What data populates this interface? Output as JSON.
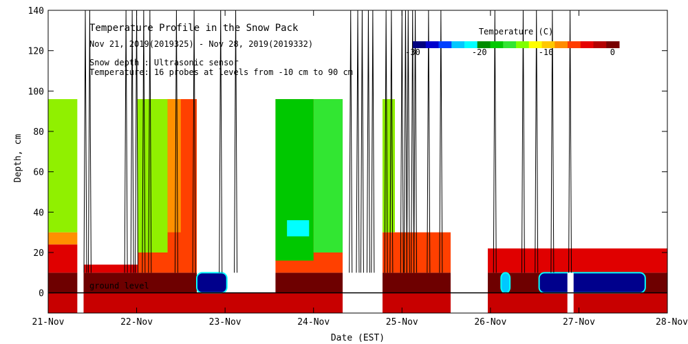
{
  "chart_data": {
    "type": "heatmap",
    "title": "Temperature Profile in the Snow Pack",
    "subtitle": "Nov 21, 2019(2019325) - Nov 28, 2019(2019332)",
    "notes": [
      "Snow depth : Ultrasonic sensor",
      "Temperature: 16 probes at levels from -10 cm to 90 cm"
    ],
    "xlabel": "Date (EST)",
    "ylabel": "Depth, cm",
    "x_ticks": [
      "21-Nov",
      "22-Nov",
      "23-Nov",
      "24-Nov",
      "25-Nov",
      "26-Nov",
      "27-Nov",
      "28-Nov"
    ],
    "xlim": [
      0,
      7
    ],
    "ylim": [
      -10,
      140
    ],
    "y_ticks": [
      0,
      20,
      40,
      60,
      80,
      100,
      120,
      140
    ],
    "ground_label": "ground level",
    "colorbar": {
      "label": "Temperature (C)",
      "tick_labels": [
        "-30",
        "-20",
        "-10",
        "0"
      ],
      "tick_values": [
        -30,
        -20,
        -10,
        0
      ],
      "range": [
        -30,
        1
      ],
      "colors": [
        "#000080",
        "#0000cd",
        "#0040ff",
        "#00c8ff",
        "#00ffff",
        "#008c00",
        "#00c800",
        "#32e632",
        "#80ff00",
        "#ffff00",
        "#ffc800",
        "#ff8c00",
        "#ff3c00",
        "#e60000",
        "#b40000",
        "#780000"
      ]
    },
    "temperature_regions": [
      {
        "x": [
          0.0,
          0.33
        ],
        "y": [
          -10,
          0
        ],
        "color": "#c80000"
      },
      {
        "x": [
          0.4,
          3.33
        ],
        "y": [
          -10,
          0
        ],
        "color": "#c80000"
      },
      {
        "x": [
          3.78,
          4.55
        ],
        "y": [
          -10,
          0
        ],
        "color": "#c80000"
      },
      {
        "x": [
          4.97,
          7.0
        ],
        "y": [
          -10,
          0
        ],
        "color": "#c80000"
      },
      {
        "x": [
          0.0,
          0.33
        ],
        "y": [
          0,
          10
        ],
        "color": "#6e0000"
      },
      {
        "x": [
          0.4,
          1.68
        ],
        "y": [
          0,
          10
        ],
        "color": "#6e0000"
      },
      {
        "x": [
          2.57,
          3.33
        ],
        "y": [
          0,
          10
        ],
        "color": "#6e0000"
      },
      {
        "x": [
          3.78,
          4.55
        ],
        "y": [
          0,
          10
        ],
        "color": "#6e0000"
      },
      {
        "x": [
          4.97,
          7.0
        ],
        "y": [
          0,
          10
        ],
        "color": "#6e0000"
      },
      {
        "x": [
          0.0,
          0.33
        ],
        "y": [
          10,
          24
        ],
        "color": "#e00000"
      },
      {
        "x": [
          0.0,
          0.33
        ],
        "y": [
          24,
          30
        ],
        "color": "#ff9000"
      },
      {
        "x": [
          0.0,
          0.33
        ],
        "y": [
          30,
          96
        ],
        "color": "#90f000"
      },
      {
        "x": [
          0.4,
          1.01
        ],
        "y": [
          10,
          14
        ],
        "color": "#e00000"
      },
      {
        "x": [
          1.01,
          1.68
        ],
        "y": [
          10,
          96
        ],
        "color": "#ff4000"
      },
      {
        "x": [
          1.01,
          1.35
        ],
        "y": [
          20,
          96
        ],
        "color": "#90f000"
      },
      {
        "x": [
          1.35,
          1.5
        ],
        "y": [
          30,
          96
        ],
        "color": "#ff9000"
      },
      {
        "x": [
          2.57,
          3.33
        ],
        "y": [
          10,
          96
        ],
        "color": "#ff4000"
      },
      {
        "x": [
          2.57,
          3.0
        ],
        "y": [
          16,
          96
        ],
        "color": "#00c800"
      },
      {
        "x": [
          3.0,
          3.33
        ],
        "y": [
          20,
          96
        ],
        "color": "#32e632"
      },
      {
        "x": [
          2.7,
          2.95
        ],
        "y": [
          28,
          36
        ],
        "color": "#00ffff"
      },
      {
        "x": [
          3.78,
          4.55
        ],
        "y": [
          10,
          30
        ],
        "color": "#ff4000"
      },
      {
        "x": [
          3.78,
          3.92
        ],
        "y": [
          30,
          96
        ],
        "color": "#90f000"
      },
      {
        "x": [
          4.97,
          7.0
        ],
        "y": [
          10,
          22
        ],
        "color": "#e00000"
      }
    ],
    "cold_pockets": [
      {
        "x": [
          1.68,
          2.02
        ],
        "y": [
          0,
          10
        ],
        "color": "#00008c"
      },
      {
        "x": [
          5.12,
          5.22
        ],
        "y": [
          0,
          10
        ],
        "color": "#00c8ff"
      },
      {
        "x": [
          5.55,
          6.75
        ],
        "y": [
          0,
          10
        ],
        "color": "#00008c"
      }
    ],
    "snow_depth_spikes_x": [
      0.42,
      0.47,
      0.88,
      0.95,
      1.0,
      1.08,
      1.15,
      1.45,
      1.65,
      1.95,
      2.12,
      3.42,
      3.5,
      3.55,
      3.62,
      3.67,
      3.82,
      3.88,
      4.0,
      4.04,
      4.07,
      4.12,
      4.15,
      4.3,
      4.44,
      5.05,
      5.37,
      5.52,
      5.7,
      5.9
    ],
    "gaps": [
      {
        "x": [
          0.33,
          0.4
        ],
        "y": [
          -10,
          140
        ]
      },
      {
        "x": [
          3.33,
          3.78
        ],
        "y": [
          -10,
          140
        ]
      },
      {
        "x": [
          4.55,
          4.97
        ],
        "y": [
          -10,
          140
        ]
      },
      {
        "x": [
          5.87,
          5.94
        ],
        "y": [
          -10,
          10
        ]
      }
    ]
  }
}
